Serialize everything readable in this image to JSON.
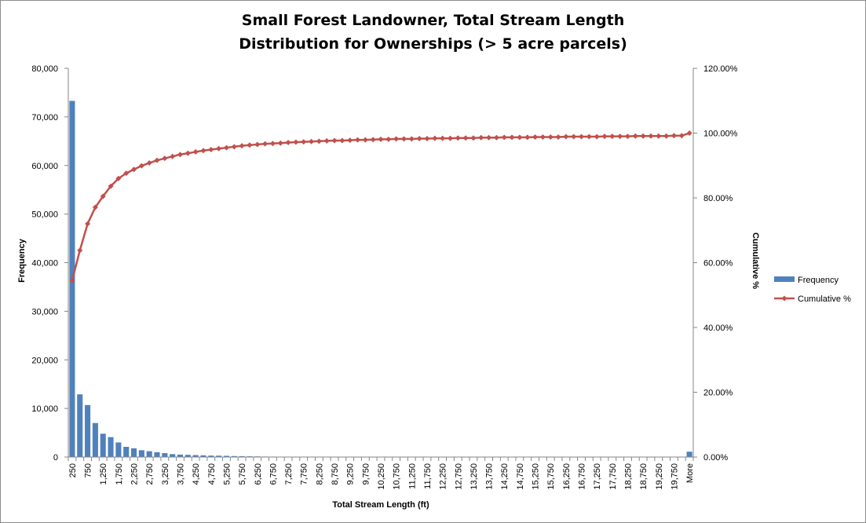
{
  "chart_data": {
    "type": "bar",
    "title_lines": [
      "Small Forest Landowner, Total Stream Length",
      "Distribution for Ownerships (> 5 acre parcels)"
    ],
    "xlabel": "Total Stream Length (ft)",
    "ylabel": "Frequency",
    "y2label": "Cumulative %",
    "ylim": [
      0,
      80000
    ],
    "y2lim": [
      0,
      120
    ],
    "y_ticks": [
      "0",
      "10,000",
      "20,000",
      "30,000",
      "40,000",
      "50,000",
      "60,000",
      "70,000",
      "80,000"
    ],
    "y2_ticks": [
      "0.00%",
      "20.00%",
      "40.00%",
      "60.00%",
      "80.00%",
      "100.00%",
      "120.00%"
    ],
    "legend_position": "right",
    "categories": [
      "250",
      "500",
      "750",
      "1,000",
      "1,250",
      "1,500",
      "1,750",
      "2,000",
      "2,250",
      "2,500",
      "2,750",
      "3,000",
      "3,250",
      "3,500",
      "3,750",
      "4,000",
      "4,250",
      "4,500",
      "4,750",
      "5,000",
      "5,250",
      "5,500",
      "5,750",
      "6,000",
      "6,250",
      "6,500",
      "6,750",
      "7,000",
      "7,250",
      "7,500",
      "7,750",
      "8,000",
      "8,250",
      "8,500",
      "8,750",
      "9,000",
      "9,250",
      "9,500",
      "9,750",
      "10,000",
      "10,250",
      "10,500",
      "10,750",
      "11,000",
      "11,250",
      "11,500",
      "11,750",
      "12,000",
      "12,250",
      "12,500",
      "12,750",
      "13,000",
      "13,250",
      "13,500",
      "13,750",
      "14,000",
      "14,250",
      "14,500",
      "14,750",
      "15,000",
      "15,250",
      "15,500",
      "15,750",
      "16,000",
      "16,250",
      "16,500",
      "16,750",
      "17,000",
      "17,250",
      "17,500",
      "17,750",
      "18,000",
      "18,250",
      "18,500",
      "18,750",
      "19,000",
      "19,250",
      "19,500",
      "19,750",
      "20,000",
      "More"
    ],
    "label_every": 2,
    "series": [
      {
        "name": "Frequency",
        "kind": "bar",
        "color": "#4f81bd",
        "values": [
          73300,
          12900,
          10700,
          7000,
          4800,
          4100,
          3000,
          2100,
          1800,
          1400,
          1200,
          1000,
          800,
          600,
          500,
          450,
          400,
          350,
          300,
          280,
          250,
          200,
          180,
          150,
          130,
          100,
          90,
          80,
          70,
          60,
          60,
          50,
          50,
          45,
          40,
          40,
          35,
          35,
          30,
          30,
          30,
          25,
          25,
          25,
          20,
          20,
          20,
          20,
          20,
          15,
          15,
          15,
          15,
          15,
          15,
          12,
          12,
          12,
          12,
          12,
          12,
          10,
          10,
          10,
          10,
          10,
          10,
          10,
          10,
          10,
          10,
          10,
          10,
          10,
          10,
          10,
          10,
          10,
          10,
          10,
          1100
        ]
      },
      {
        "name": "Cumulative %",
        "kind": "line",
        "axis": "secondary",
        "color": "#c0504d",
        "values": [
          54.5,
          63.8,
          72.0,
          77.1,
          80.5,
          83.6,
          86.0,
          87.6,
          88.8,
          89.9,
          90.8,
          91.6,
          92.2,
          92.8,
          93.4,
          93.8,
          94.2,
          94.6,
          94.9,
          95.2,
          95.5,
          95.8,
          96.1,
          96.3,
          96.5,
          96.7,
          96.8,
          96.9,
          97.1,
          97.2,
          97.3,
          97.4,
          97.5,
          97.6,
          97.7,
          97.7,
          97.8,
          97.9,
          97.9,
          98.0,
          98.1,
          98.1,
          98.2,
          98.2,
          98.2,
          98.3,
          98.3,
          98.4,
          98.4,
          98.4,
          98.5,
          98.5,
          98.5,
          98.6,
          98.6,
          98.6,
          98.7,
          98.7,
          98.7,
          98.7,
          98.8,
          98.8,
          98.8,
          98.8,
          98.9,
          98.9,
          98.9,
          98.9,
          98.9,
          99.0,
          99.0,
          99.0,
          99.0,
          99.1,
          99.1,
          99.1,
          99.1,
          99.1,
          99.2,
          99.2,
          100.0
        ]
      }
    ]
  }
}
